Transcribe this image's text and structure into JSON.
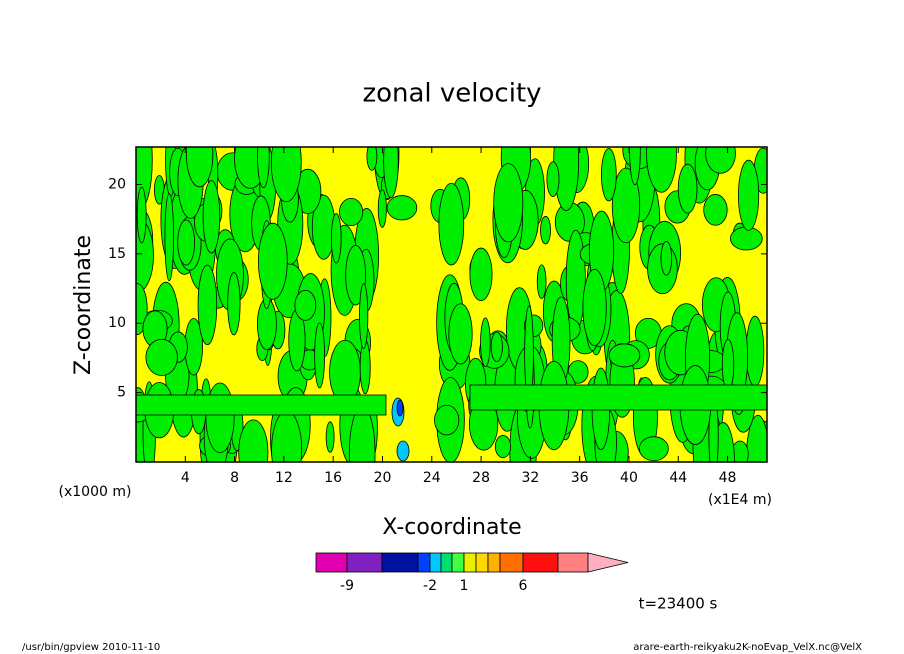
{
  "chart_data": {
    "type": "contour",
    "title": "zonal velocity",
    "x_label": "X-coordinate",
    "y_label": "Z-coordinate",
    "x_unit": "(x1E4 m)",
    "y_unit": "(x1000 m)",
    "xlim": [
      0,
      51.2
    ],
    "ylim": [
      0,
      22.7
    ],
    "xticks": [
      4,
      8,
      12,
      16,
      20,
      24,
      28,
      32,
      36,
      40,
      44,
      48
    ],
    "yticks": [
      5,
      10,
      15,
      20
    ],
    "colorbar": {
      "colors": [
        "#e000b0",
        "#8020c0",
        "#0010a0",
        "#0040ff",
        "#00c8ff",
        "#00e070",
        "#40ff40",
        "#e8f000",
        "#ffd800",
        "#ffb000",
        "#ff7000",
        "#ff1010",
        "#ff8080",
        "#ffb0c0"
      ],
      "ticks": [
        -9,
        -2,
        1,
        6
      ]
    },
    "time_label": "t=23400 s",
    "footer_left": "/usr/bin/gpview  2010-11-10",
    "footer_right": "arare-earth-reikyaku2K-noEvap_VelX.nc@VelX"
  }
}
